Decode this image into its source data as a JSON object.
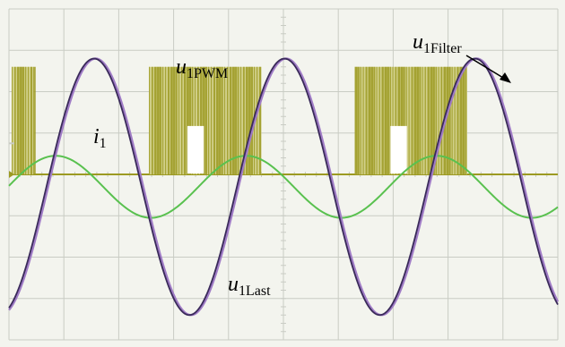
{
  "chart_data": {
    "type": "line",
    "title": "",
    "xlabel": "",
    "ylabel": "",
    "grid": true,
    "grid_divisions": {
      "x": 10,
      "y": 8
    },
    "xlim": [
      0,
      10
    ],
    "ylim": [
      -4,
      4
    ],
    "colors": {
      "background": "#f3f4ee",
      "grid": "#c9ccc4",
      "u1Last": "#3a2a5a",
      "u1Filter": "#a07cc6",
      "i1": "#59c14f",
      "u1PWM": "#9c9a22",
      "u1PWM_light": "#d1d08a"
    },
    "series": [
      {
        "name": "u1Last",
        "label_base": "u",
        "label_sub": "1Last",
        "kind": "sine",
        "amplitude": 3.1,
        "period": 3.47,
        "peak_x": 1.55,
        "x_start": 0.0,
        "x_end": 10.0,
        "offset": -0.3
      },
      {
        "name": "u1Filter",
        "label_base": "u",
        "label_sub": "1Filter",
        "kind": "sine",
        "amplitude": 3.1,
        "period": 3.47,
        "peak_x": 1.58,
        "x_start": 0.0,
        "x_end": 10.0,
        "offset": -0.3
      },
      {
        "name": "i1",
        "label_base": "i",
        "label_sub": "1",
        "kind": "sine",
        "amplitude": 0.75,
        "period": 3.47,
        "peak_x": 0.85,
        "x_start": 0.0,
        "x_end": 10.0,
        "offset": -0.3
      },
      {
        "name": "u1PWM",
        "label_base": "u",
        "label_sub": "1PWM",
        "kind": "pwm",
        "low": 0.0,
        "high": 2.6,
        "bursts": [
          [
            0.05,
            0.45
          ],
          [
            2.55,
            4.6
          ],
          [
            6.3,
            8.35
          ]
        ],
        "notches": [
          [
            3.25,
            3.55
          ],
          [
            6.95,
            7.25
          ]
        ]
      }
    ],
    "annotations": [
      {
        "text_base": "u",
        "text_sub": "1Filter",
        "points_to": "u1Filter",
        "arrow": true
      }
    ]
  }
}
